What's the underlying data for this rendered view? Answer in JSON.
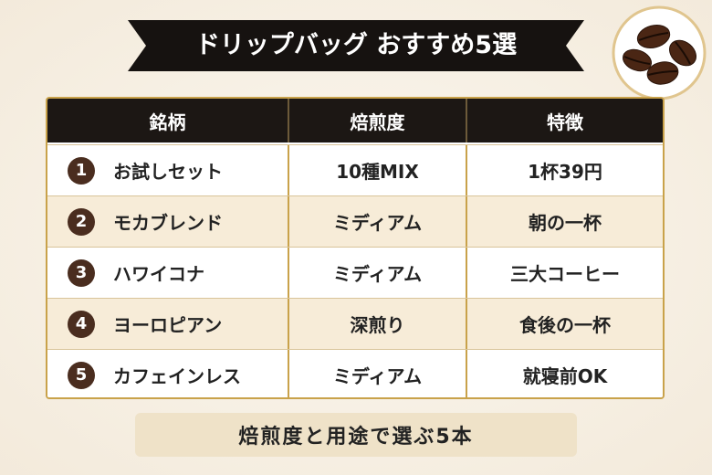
{
  "header": {
    "title": "ドリップバッグ おすすめ5選"
  },
  "table": {
    "columns": [
      "銘柄",
      "焙煎度",
      "特徴"
    ],
    "rows": [
      [
        "1",
        "お試しセット",
        "10種MIX",
        "1杯39円"
      ],
      [
        "2",
        "モカブレンド",
        "ミディアム",
        "朝の一杯"
      ],
      [
        "3",
        "ハワイコナ",
        "ミディアム",
        "三大コーヒー"
      ],
      [
        "4",
        "ヨーロピアン",
        "深煎り",
        "食後の一杯"
      ],
      [
        "5",
        "カフェインレス",
        "ミディアム",
        "就寝前OK"
      ]
    ]
  },
  "footer": {
    "caption": "焙煎度と用途で選ぶ5本"
  }
}
